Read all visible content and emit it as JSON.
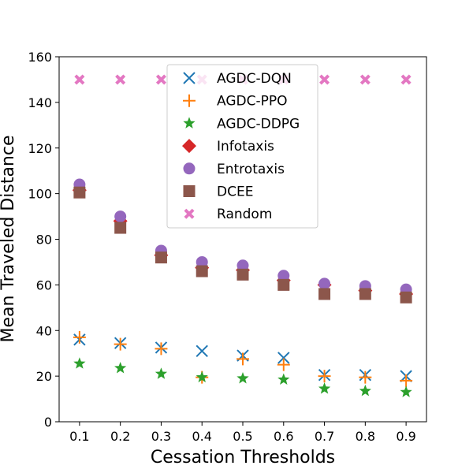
{
  "chart_data": {
    "type": "scatter",
    "title": "",
    "xlabel": "Cessation Thresholds",
    "ylabel": "Mean Traveled Distance",
    "x": [
      0.1,
      0.2,
      0.3,
      0.4,
      0.5,
      0.6,
      0.7,
      0.8,
      0.9
    ],
    "x_tick_labels": [
      "0.1",
      "0.2",
      "0.3",
      "0.4",
      "0.5",
      "0.6",
      "0.7",
      "0.8",
      "0.9"
    ],
    "ylim": [
      0,
      160
    ],
    "y_ticks": [
      0,
      20,
      40,
      60,
      80,
      100,
      120,
      140,
      160
    ],
    "y_tick_labels": [
      "0",
      "20",
      "40",
      "60",
      "80",
      "100",
      "120",
      "140",
      "160"
    ],
    "xlim": [
      0.05,
      0.95
    ],
    "legend_position": "upper-center",
    "series": [
      {
        "name": "Random",
        "marker": "X",
        "color": "#e377c2",
        "values": [
          150,
          150,
          150,
          150,
          150,
          150,
          150,
          150,
          150
        ]
      },
      {
        "name": "Infotaxis",
        "marker": "diamond",
        "color": "#d62728",
        "values": [
          101.5,
          88,
          73,
          67.5,
          66.5,
          62,
          60,
          57.5,
          56
        ]
      },
      {
        "name": "Entrotaxis",
        "marker": "circle",
        "color": "#9467bd",
        "values": [
          104,
          90,
          75,
          70,
          68.5,
          64,
          60.5,
          59.5,
          58
        ]
      },
      {
        "name": "DCEE",
        "marker": "square",
        "color": "#8c564b",
        "values": [
          100.5,
          85,
          72,
          66,
          64.5,
          60,
          56,
          56,
          54.5
        ]
      },
      {
        "name": "AGDC-DQN",
        "marker": "x",
        "color": "#1f77b4",
        "values": [
          36,
          34.5,
          32.5,
          31,
          29,
          28,
          20.5,
          20.5,
          20
        ]
      },
      {
        "name": "AGDC-PPO",
        "marker": "plus",
        "color": "#ff7f0e",
        "values": [
          37,
          34,
          32,
          19.5,
          27.5,
          25,
          20,
          19.5,
          18
        ]
      },
      {
        "name": "AGDC-DDPG",
        "marker": "star",
        "color": "#2ca02c",
        "values": [
          25.5,
          23.5,
          21,
          19.5,
          19,
          18.5,
          14.5,
          13.5,
          13
        ]
      }
    ],
    "legend_order": [
      "AGDC-DQN",
      "AGDC-PPO",
      "AGDC-DDPG",
      "Infotaxis",
      "Entrotaxis",
      "DCEE",
      "Random"
    ]
  }
}
